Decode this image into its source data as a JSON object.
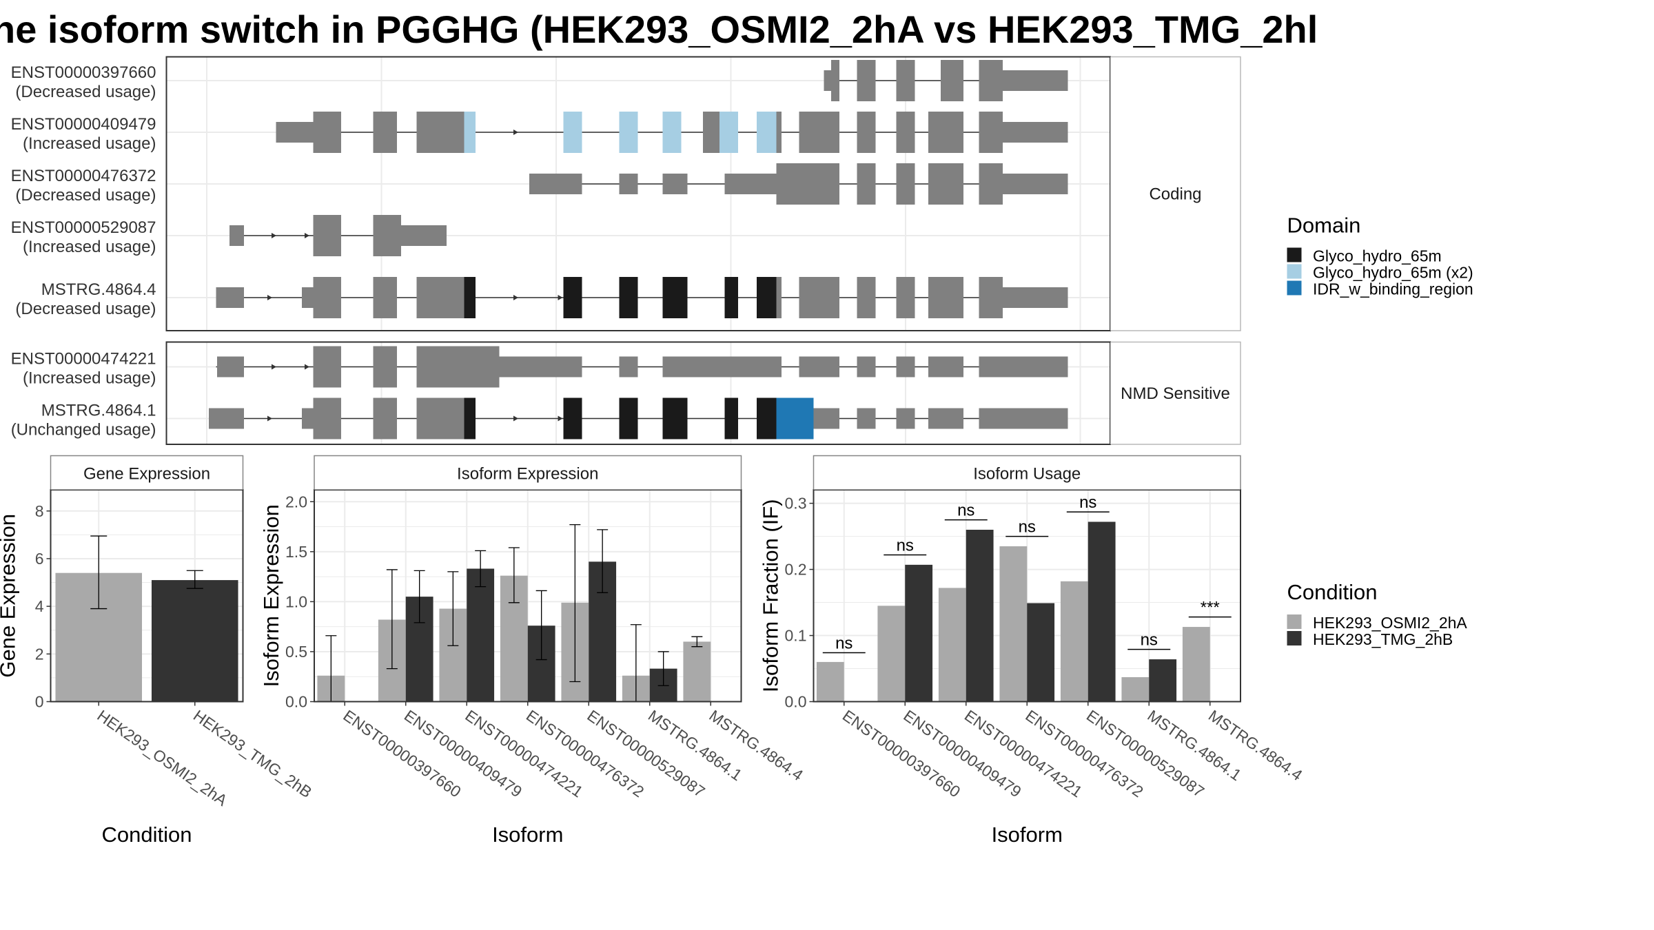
{
  "title": "ne isoform switch in PGGHG (HEK293_OSMI2_2hA vs HEK293_TMG_2hl",
  "colors": {
    "exon": "#808080",
    "domain_glyco": "#1a1a1a",
    "domain_glyco_x2": "#a6cee3",
    "domain_idr": "#1f78b4",
    "condition_osmi": "#a9a9a9",
    "condition_tmg": "#333333",
    "strip_bg": "#ffffff",
    "grid": "#ebebeb"
  },
  "structure": {
    "panels": [
      {
        "label": "Coding",
        "isoforms": [
          {
            "id": "ENST00000397660",
            "usage": "(Decreased usage)"
          },
          {
            "id": "ENST00000409479",
            "usage": "(Increased usage)"
          },
          {
            "id": "ENST00000476372",
            "usage": "(Decreased usage)"
          },
          {
            "id": "ENST00000529087",
            "usage": "(Increased usage)"
          },
          {
            "id": "MSTRG.4864.4",
            "usage": "(Decreased usage)"
          }
        ]
      },
      {
        "label": "NMD Sensitive",
        "isoforms": [
          {
            "id": "ENST00000474221",
            "usage": "(Increased usage)"
          },
          {
            "id": "MSTRG.4864.1",
            "usage": "(Unchanged usage)"
          }
        ]
      }
    ],
    "domain_legend": {
      "title": "Domain",
      "items": [
        {
          "label": "Glyco_hydro_65m",
          "color": "#1a1a1a"
        },
        {
          "label": "Glyco_hydro_65m (x2)",
          "color": "#a6cee3"
        },
        {
          "label": "IDR_w_binding_region",
          "color": "#1f78b4"
        }
      ]
    }
  },
  "condition_legend": {
    "title": "Condition",
    "items": [
      {
        "label": "HEK293_OSMI2_2hA",
        "color": "#a9a9a9"
      },
      {
        "label": "HEK293_TMG_2hB",
        "color": "#333333"
      }
    ]
  },
  "chart_data": [
    {
      "type": "bar",
      "title": "Gene Expression",
      "xlabel": "Condition",
      "ylabel": "Gene Expression",
      "ylim": [
        0,
        8.6
      ],
      "yticks": [
        0,
        2,
        4,
        6,
        8
      ],
      "categories": [
        "HEK293_OSMI2_2hA",
        "HEK293_TMG_2hB"
      ],
      "values": [
        5.4,
        5.1
      ],
      "error_low": [
        3.9,
        4.75
      ],
      "error_high": [
        6.95,
        5.5
      ],
      "grid": true
    },
    {
      "type": "bar",
      "title": "Isoform Expression",
      "xlabel": "Isoform",
      "ylabel": "Isoform Expression",
      "ylim": [
        0,
        2.05
      ],
      "yticks": [
        0.0,
        0.5,
        1.0,
        1.5,
        2.0
      ],
      "categories": [
        "ENST00000397660",
        "ENST00000409479",
        "ENST00000474221",
        "ENST00000476372",
        "ENST00000529087",
        "MSTRG.4864.1",
        "MSTRG.4864.4"
      ],
      "series": [
        {
          "name": "HEK293_OSMI2_2hA",
          "values": [
            0.26,
            0.82,
            0.93,
            1.26,
            0.99,
            0.26,
            0.6
          ],
          "error_low": [
            0.0,
            0.33,
            0.56,
            0.99,
            0.2,
            0.0,
            0.55
          ],
          "error_high": [
            0.66,
            1.32,
            1.3,
            1.54,
            1.77,
            0.77,
            0.65
          ]
        },
        {
          "name": "HEK293_TMG_2hB",
          "values": [
            0.0,
            1.05,
            1.33,
            0.76,
            1.4,
            0.33,
            0.0
          ],
          "error_low": [
            0.0,
            0.79,
            1.15,
            0.42,
            1.09,
            0.16,
            0.0
          ],
          "error_high": [
            0.0,
            1.31,
            1.51,
            1.11,
            1.72,
            0.5,
            0.0
          ]
        }
      ],
      "grid": true
    },
    {
      "type": "bar",
      "title": "Isoform Usage",
      "xlabel": "Isoform",
      "ylabel": "Isoform Fraction (IF)",
      "ylim": [
        0,
        0.31
      ],
      "yticks": [
        0.0,
        0.1,
        0.2,
        0.3
      ],
      "categories": [
        "ENST00000397660",
        "ENST00000409479",
        "ENST00000474221",
        "ENST00000476372",
        "ENST00000529087",
        "MSTRG.4864.1",
        "MSTRG.4864.4"
      ],
      "series": [
        {
          "name": "HEK293_OSMI2_2hA",
          "values": [
            0.06,
            0.145,
            0.172,
            0.235,
            0.182,
            0.037,
            0.113
          ]
        },
        {
          "name": "HEK293_TMG_2hB",
          "values": [
            0.0,
            0.207,
            0.26,
            0.149,
            0.272,
            0.064,
            0.0
          ]
        }
      ],
      "significance": [
        "ns",
        "ns",
        "ns",
        "ns",
        "ns",
        "ns",
        "***"
      ],
      "significance_y": [
        0.074,
        0.222,
        0.275,
        0.25,
        0.287,
        0.079,
        0.128
      ],
      "grid": true
    }
  ]
}
